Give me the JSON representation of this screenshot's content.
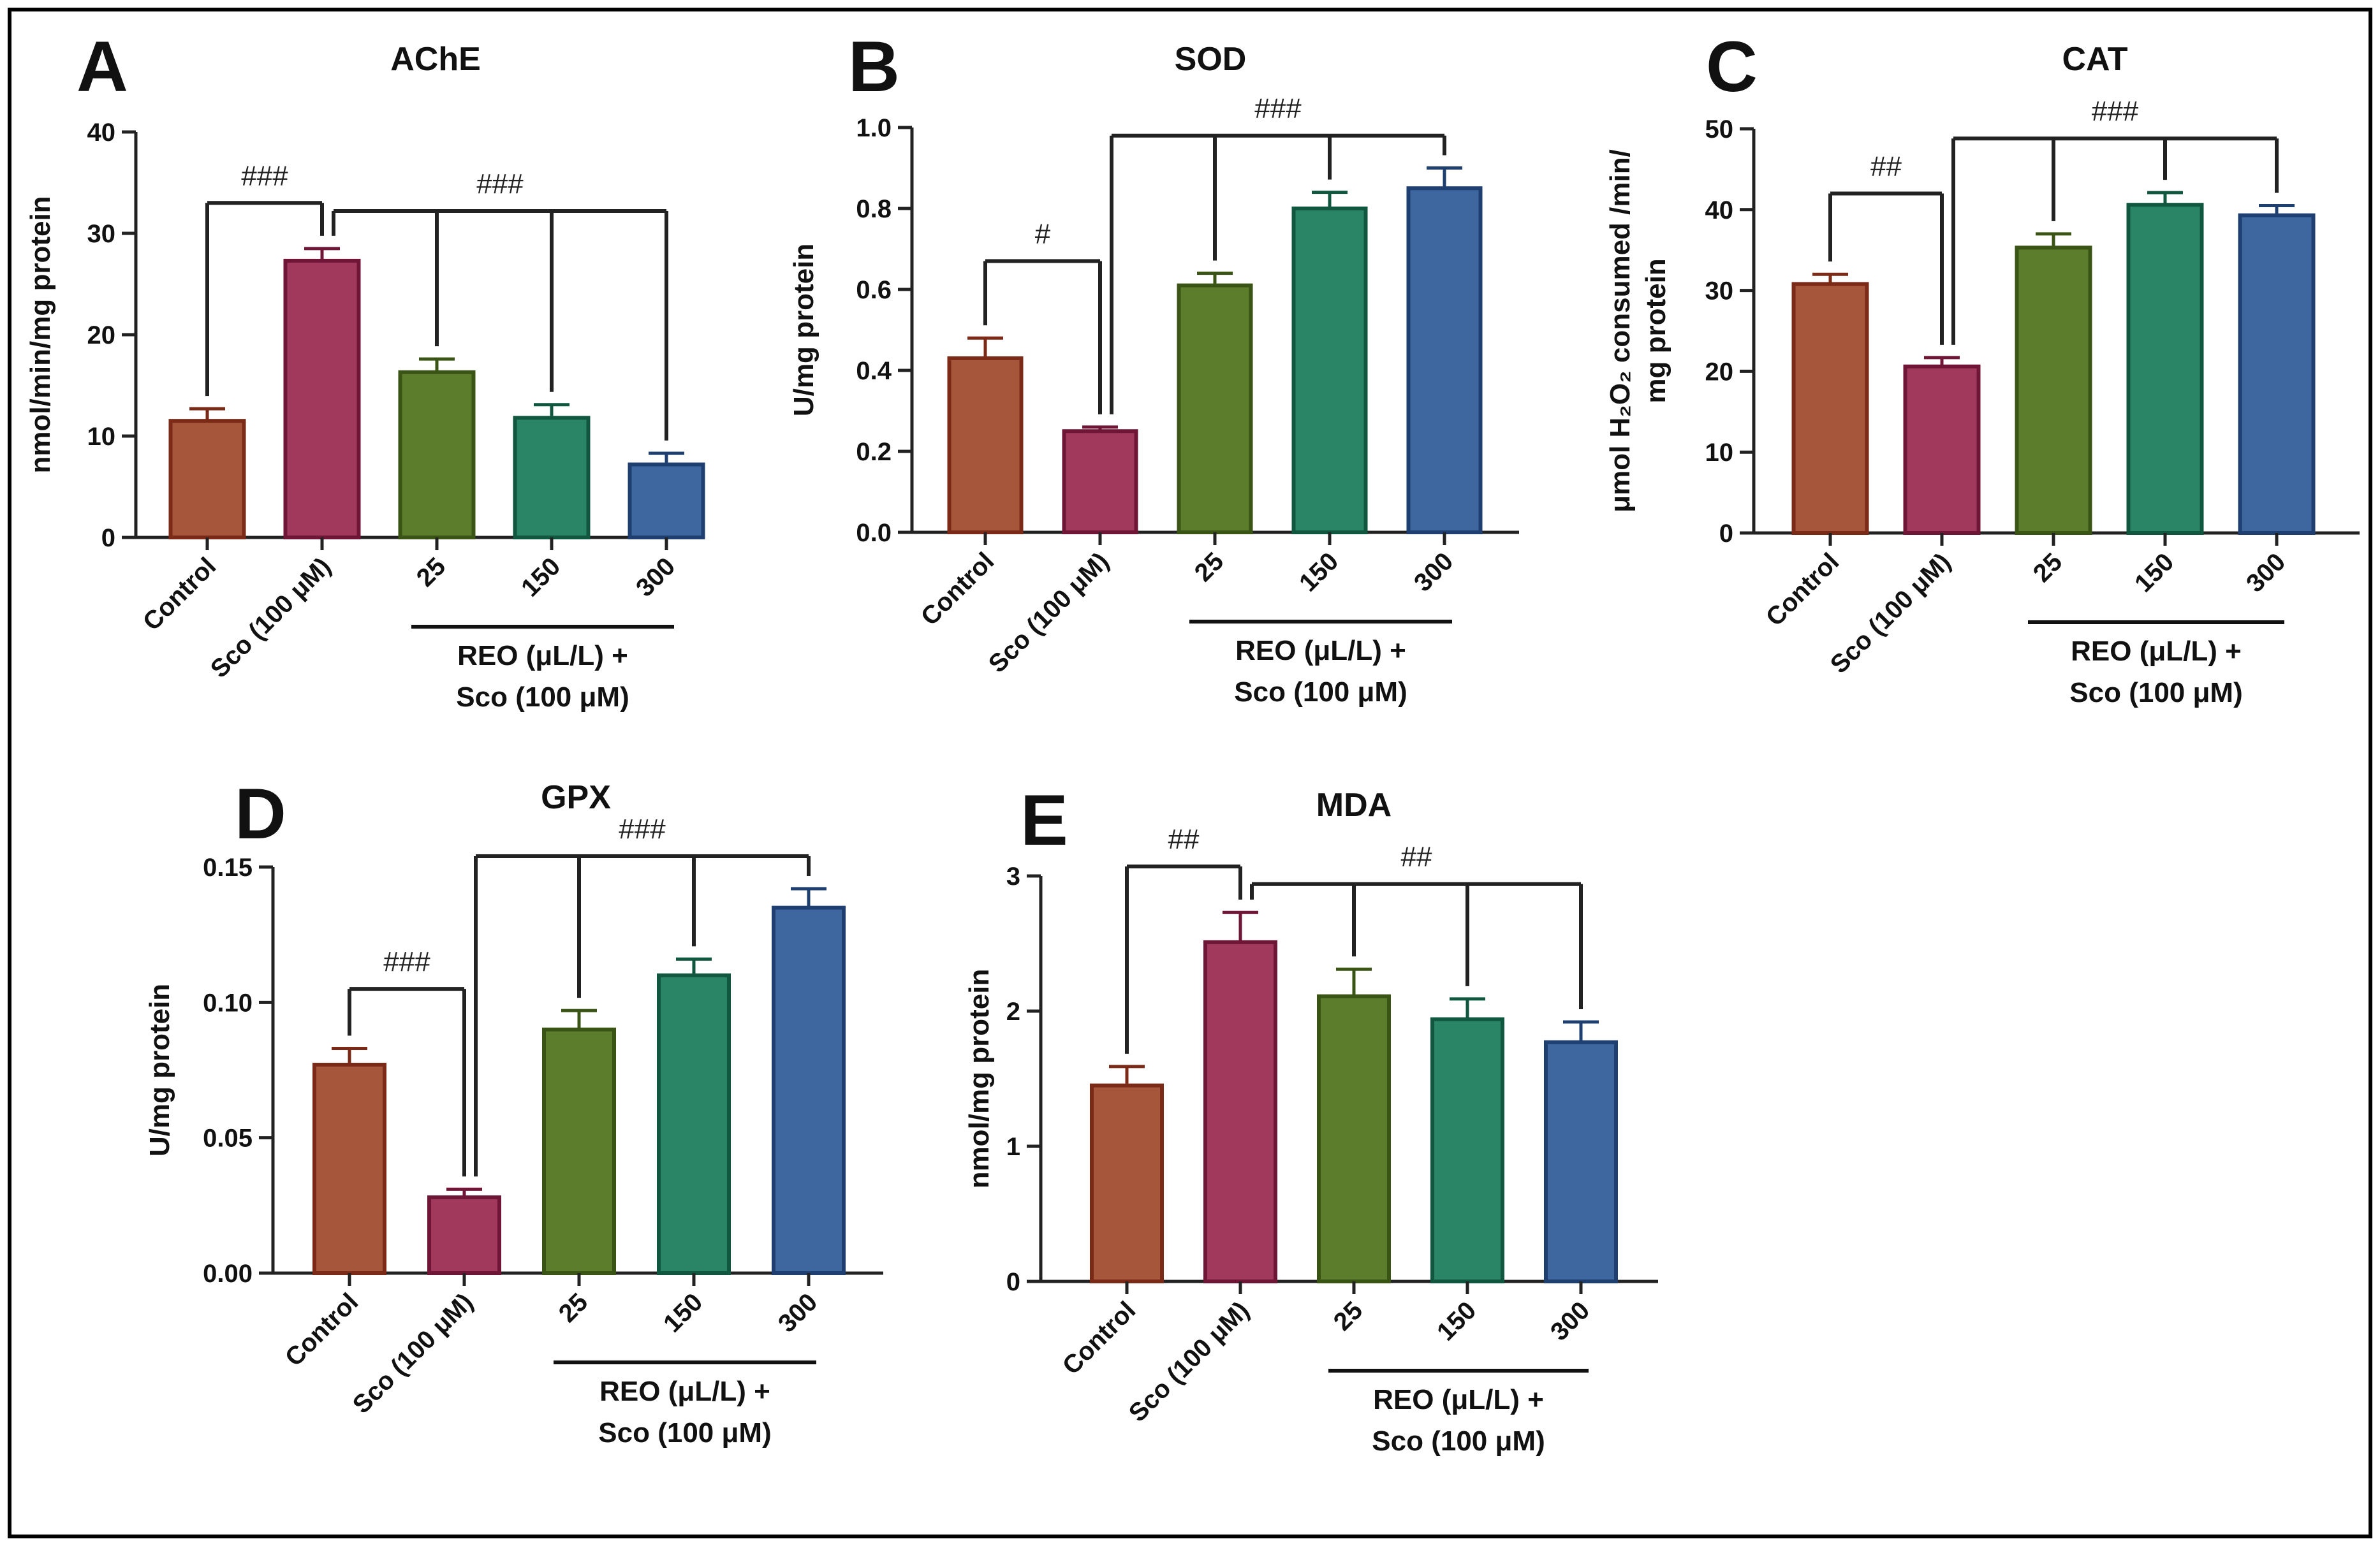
{
  "colors": {
    "border": "#000000",
    "axis": "#222222",
    "bar_fill": [
      "#a6563a",
      "#a1395c",
      "#5c7d2b",
      "#2a8567",
      "#3e67a0"
    ],
    "bar_stroke": [
      "#7a2a16",
      "#6f1637",
      "#3a5415",
      "#11573f",
      "#1e3f70"
    ]
  },
  "chart_data": [
    {
      "id": "A",
      "panel_label": "A",
      "type": "bar",
      "title": "AChE",
      "ylabel": [
        "nmol/min/mg protein"
      ],
      "ylim": [
        0,
        40
      ],
      "yticks": [
        "0",
        "10",
        "20",
        "30",
        "40"
      ],
      "categories": [
        "Control",
        "Sco (100 μM)",
        "25",
        "150",
        "300"
      ],
      "values": [
        11.5,
        27.3,
        16.3,
        11.8,
        7.2
      ],
      "errors": [
        1.2,
        1.2,
        1.3,
        1.3,
        1.1
      ],
      "group_label": [
        "REO (μL/L) +",
        "Sco (100 μM)"
      ],
      "annotations": [
        {
          "text": "###",
          "from": 0,
          "to": 1,
          "level": 33
        },
        {
          "text": "###",
          "from": 1,
          "to": [
            2,
            3,
            4
          ],
          "level": 32.2
        }
      ]
    },
    {
      "id": "B",
      "panel_label": "B",
      "type": "bar",
      "title": "SOD",
      "ylabel": [
        "U/mg protein"
      ],
      "ylim": [
        0,
        1.0
      ],
      "yticks": [
        "0.0",
        "0.2",
        "0.4",
        "0.6",
        "0.8",
        "1.0"
      ],
      "categories": [
        "Control",
        "Sco (100 μM)",
        "25",
        "150",
        "300"
      ],
      "values": [
        0.43,
        0.25,
        0.61,
        0.8,
        0.85
      ],
      "errors": [
        0.05,
        0.01,
        0.03,
        0.04,
        0.05
      ],
      "group_label": [
        "REO (μL/L) +",
        "Sco (100 μM)"
      ],
      "annotations": [
        {
          "text": "#",
          "from": 0,
          "to": 1,
          "level": 0.67
        },
        {
          "text": "###",
          "from": 1,
          "to": [
            2,
            3,
            4
          ],
          "level": 0.98
        }
      ]
    },
    {
      "id": "C",
      "panel_label": "C",
      "type": "bar",
      "title": "CAT",
      "ylabel": [
        "μmol H₂O₂ consumed /min/",
        "mg protein"
      ],
      "ylim": [
        0,
        50
      ],
      "yticks": [
        "0",
        "10",
        "20",
        "30",
        "40",
        "50"
      ],
      "categories": [
        "Control",
        "Sco (100 μM)",
        "25",
        "150",
        "300"
      ],
      "values": [
        30.8,
        20.6,
        35.3,
        40.6,
        39.3
      ],
      "errors": [
        1.2,
        1.1,
        1.7,
        1.5,
        1.2
      ],
      "group_label": [
        "REO (μL/L) +",
        "Sco (100 μM)"
      ],
      "annotations": [
        {
          "text": "##",
          "from": 0,
          "to": 1,
          "level": 42
        },
        {
          "text": "###",
          "from": 1,
          "to": [
            2,
            3,
            4
          ],
          "level": 48.8
        }
      ]
    },
    {
      "id": "D",
      "panel_label": "D",
      "type": "bar",
      "title": "GPX",
      "ylabel": [
        "U/mg protein"
      ],
      "ylim": [
        0,
        0.15
      ],
      "yticks": [
        "0.00",
        "0.05",
        "0.10",
        "0.15"
      ],
      "categories": [
        "Control",
        "Sco (100 μM)",
        "25",
        "150",
        "300"
      ],
      "values": [
        0.077,
        0.028,
        0.09,
        0.11,
        0.135
      ],
      "errors": [
        0.006,
        0.003,
        0.007,
        0.006,
        0.007
      ],
      "group_label": [
        "REO (μL/L) +",
        "Sco (100 μM)"
      ],
      "annotations": [
        {
          "text": "###",
          "from": 0,
          "to": 1,
          "level": 0.105
        },
        {
          "text": "###",
          "from": 1,
          "to": [
            2,
            3,
            4
          ],
          "level": 0.154
        }
      ]
    },
    {
      "id": "E",
      "panel_label": "E",
      "type": "bar",
      "title": "MDA",
      "ylabel": [
        "nmol/mg protein"
      ],
      "ylim": [
        0,
        3
      ],
      "yticks": [
        "0",
        "1",
        "2",
        "3"
      ],
      "categories": [
        "Control",
        "Sco (100 μM)",
        "25",
        "150",
        "300"
      ],
      "values": [
        1.45,
        2.51,
        2.11,
        1.94,
        1.77
      ],
      "errors": [
        0.14,
        0.22,
        0.2,
        0.15,
        0.15
      ],
      "group_label": [
        "REO (μL/L) +",
        "Sco (100 μM)"
      ],
      "annotations": [
        {
          "text": "##",
          "from": 0,
          "to": 1,
          "level": 3.07
        },
        {
          "text": "##",
          "from": 1,
          "to": [
            2,
            3,
            4
          ],
          "level": 2.94
        }
      ]
    }
  ]
}
